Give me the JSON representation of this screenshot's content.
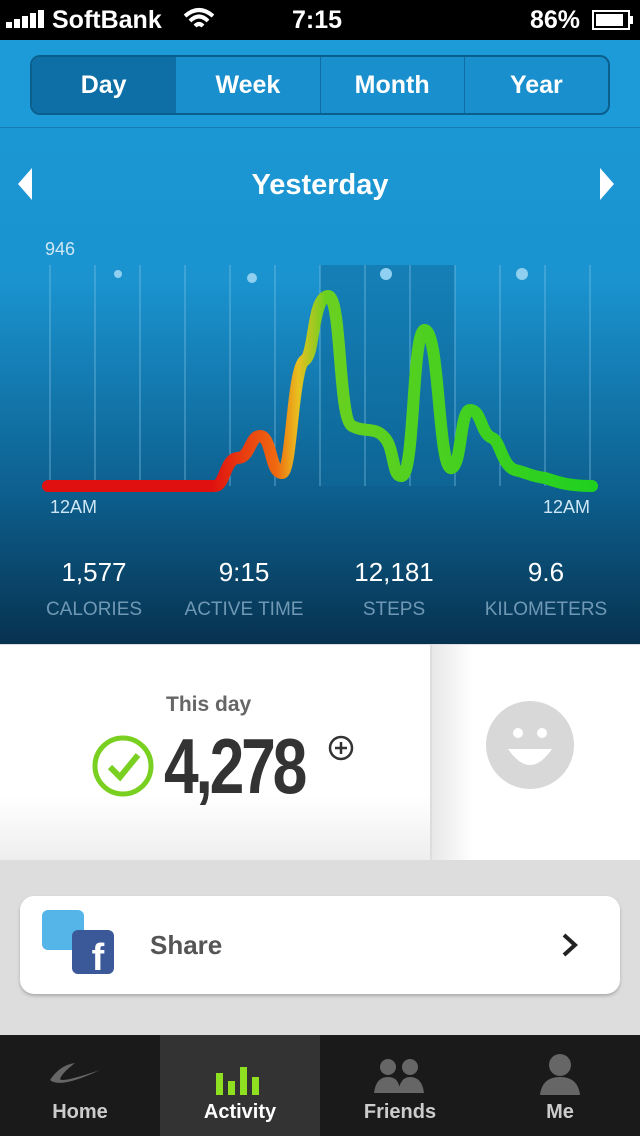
{
  "status_bar": {
    "carrier": "SoftBank",
    "time": "7:15",
    "battery": "86%"
  },
  "tabs": [
    "Day",
    "Week",
    "Month",
    "Year"
  ],
  "header": {
    "title": "Yesterday"
  },
  "activity_graph": {
    "max_label": "946",
    "start_label": "12AM",
    "end_label": "12AM"
  },
  "stats": [
    {
      "value": "1,577",
      "label": "CALORIES"
    },
    {
      "value": "9:15",
      "label": "ACTIVE TIME"
    },
    {
      "value": "12,181",
      "label": "STEPS"
    },
    {
      "value": "9.6",
      "label": "KILOMETERS"
    }
  ],
  "summary": {
    "caption": "This day",
    "fuel": "4,278"
  },
  "share": {
    "label": "Share"
  },
  "tab_bar": [
    "Home",
    "Activity",
    "Friends",
    "Me"
  ]
}
